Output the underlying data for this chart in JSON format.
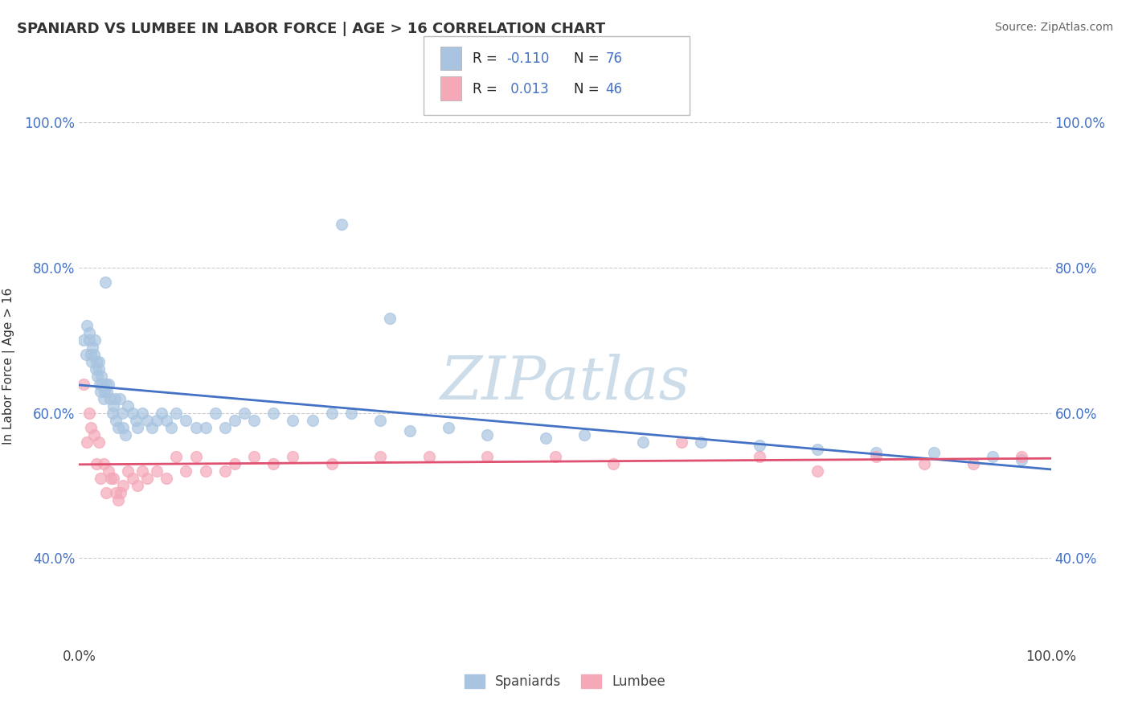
{
  "title": "SPANIARD VS LUMBEE IN LABOR FORCE | AGE > 16 CORRELATION CHART",
  "source_text": "Source: ZipAtlas.com",
  "ylabel": "In Labor Force | Age > 16",
  "xlim": [
    0,
    1
  ],
  "ylim": [
    0.28,
    1.05
  ],
  "xticklabels": [
    "0.0%",
    "100.0%"
  ],
  "yticklabels": [
    "40.0%",
    "60.0%",
    "80.0%",
    "100.0%"
  ],
  "ytick_positions": [
    0.4,
    0.6,
    0.8,
    1.0
  ],
  "legend_labels": [
    "Spaniards",
    "Lumbee"
  ],
  "spaniard_color": "#a8c4e0",
  "lumbee_color": "#f4a8b8",
  "spaniard_line_color": "#4472c4",
  "lumbee_line_color": "#e05070",
  "watermark": "ZIPatlas",
  "watermark_color": "#ccdce8",
  "background_color": "#ffffff",
  "grid_color": "#cccccc",
  "spaniard_x": [
    0.005,
    0.007,
    0.008,
    0.01,
    0.01,
    0.012,
    0.013,
    0.014,
    0.015,
    0.016,
    0.017,
    0.018,
    0.019,
    0.02,
    0.02,
    0.021,
    0.022,
    0.023,
    0.024,
    0.025,
    0.026,
    0.027,
    0.028,
    0.029,
    0.03,
    0.032,
    0.034,
    0.035,
    0.037,
    0.038,
    0.04,
    0.042,
    0.044,
    0.045,
    0.048,
    0.05,
    0.055,
    0.058,
    0.06,
    0.065,
    0.07,
    0.075,
    0.08,
    0.085,
    0.09,
    0.095,
    0.1,
    0.11,
    0.12,
    0.13,
    0.14,
    0.15,
    0.16,
    0.17,
    0.18,
    0.2,
    0.22,
    0.24,
    0.26,
    0.28,
    0.31,
    0.34,
    0.38,
    0.42,
    0.48,
    0.52,
    0.58,
    0.64,
    0.7,
    0.76,
    0.82,
    0.88,
    0.94,
    0.97,
    0.27,
    0.32
  ],
  "spaniard_y": [
    0.7,
    0.68,
    0.72,
    0.7,
    0.71,
    0.68,
    0.67,
    0.69,
    0.68,
    0.7,
    0.66,
    0.67,
    0.65,
    0.66,
    0.67,
    0.64,
    0.63,
    0.65,
    0.64,
    0.62,
    0.63,
    0.78,
    0.64,
    0.63,
    0.64,
    0.62,
    0.6,
    0.61,
    0.62,
    0.59,
    0.58,
    0.62,
    0.6,
    0.58,
    0.57,
    0.61,
    0.6,
    0.59,
    0.58,
    0.6,
    0.59,
    0.58,
    0.59,
    0.6,
    0.59,
    0.58,
    0.6,
    0.59,
    0.58,
    0.58,
    0.6,
    0.58,
    0.59,
    0.6,
    0.59,
    0.6,
    0.59,
    0.59,
    0.6,
    0.6,
    0.59,
    0.575,
    0.58,
    0.57,
    0.565,
    0.57,
    0.56,
    0.56,
    0.555,
    0.55,
    0.545,
    0.545,
    0.54,
    0.535,
    0.86,
    0.73
  ],
  "lumbee_x": [
    0.005,
    0.008,
    0.01,
    0.012,
    0.015,
    0.018,
    0.02,
    0.022,
    0.025,
    0.028,
    0.03,
    0.033,
    0.035,
    0.038,
    0.04,
    0.043,
    0.045,
    0.05,
    0.055,
    0.06,
    0.065,
    0.07,
    0.08,
    0.09,
    0.1,
    0.11,
    0.12,
    0.13,
    0.15,
    0.16,
    0.18,
    0.2,
    0.22,
    0.26,
    0.31,
    0.36,
    0.42,
    0.49,
    0.55,
    0.62,
    0.7,
    0.76,
    0.82,
    0.87,
    0.92,
    0.97
  ],
  "lumbee_y": [
    0.64,
    0.56,
    0.6,
    0.58,
    0.57,
    0.53,
    0.56,
    0.51,
    0.53,
    0.49,
    0.52,
    0.51,
    0.51,
    0.49,
    0.48,
    0.49,
    0.5,
    0.52,
    0.51,
    0.5,
    0.52,
    0.51,
    0.52,
    0.51,
    0.54,
    0.52,
    0.54,
    0.52,
    0.52,
    0.53,
    0.54,
    0.53,
    0.54,
    0.53,
    0.54,
    0.54,
    0.54,
    0.54,
    0.53,
    0.56,
    0.54,
    0.52,
    0.54,
    0.53,
    0.53,
    0.54
  ]
}
